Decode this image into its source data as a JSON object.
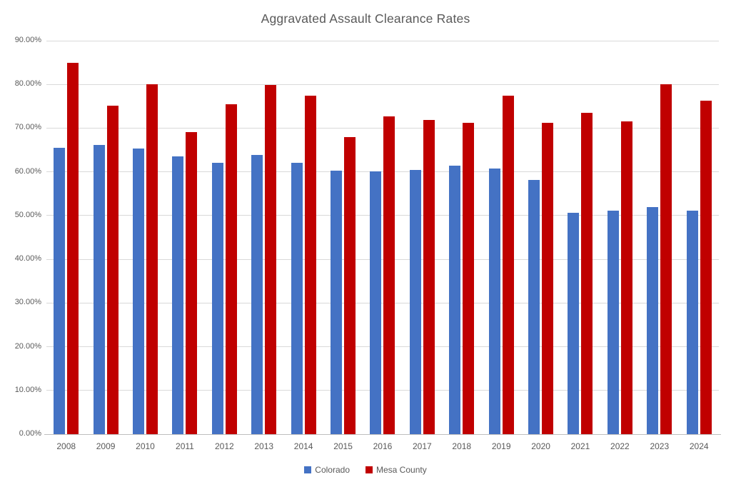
{
  "chart_data": {
    "type": "bar",
    "title": "Aggravated Assault Clearance Rates",
    "categories": [
      "2008",
      "2009",
      "2010",
      "2011",
      "2012",
      "2013",
      "2014",
      "2015",
      "2016",
      "2017",
      "2018",
      "2019",
      "2020",
      "2021",
      "2022",
      "2023",
      "2024"
    ],
    "series": [
      {
        "name": "Colorado",
        "color": "#4472C4",
        "values": [
          65.5,
          66.2,
          65.3,
          63.6,
          62.0,
          63.8,
          62.0,
          60.2,
          60.1,
          60.4,
          61.4,
          60.8,
          58.2,
          50.6,
          51.2,
          52.0,
          51.1
        ]
      },
      {
        "name": "Mesa County",
        "color": "#C00000",
        "values": [
          85.0,
          75.2,
          80.1,
          69.1,
          75.4,
          79.9,
          77.5,
          68.0,
          72.7,
          71.8,
          71.3,
          77.5,
          71.2,
          73.5,
          71.6,
          80.1,
          76.3
        ]
      }
    ],
    "xlabel": "",
    "ylabel": "",
    "ylim": [
      0,
      90
    ],
    "y_tick_step": 10,
    "y_tick_labels": [
      "0.00%",
      "10.00%",
      "20.00%",
      "30.00%",
      "40.00%",
      "50.00%",
      "60.00%",
      "70.00%",
      "80.00%",
      "90.00%"
    ],
    "grid": true,
    "legend_position": "bottom",
    "colors": {
      "title_text": "#595959",
      "axis_text": "#595959",
      "gridline": "#D9D9D9",
      "axis_line": "#BFBFBF",
      "background": "#FFFFFF"
    }
  }
}
